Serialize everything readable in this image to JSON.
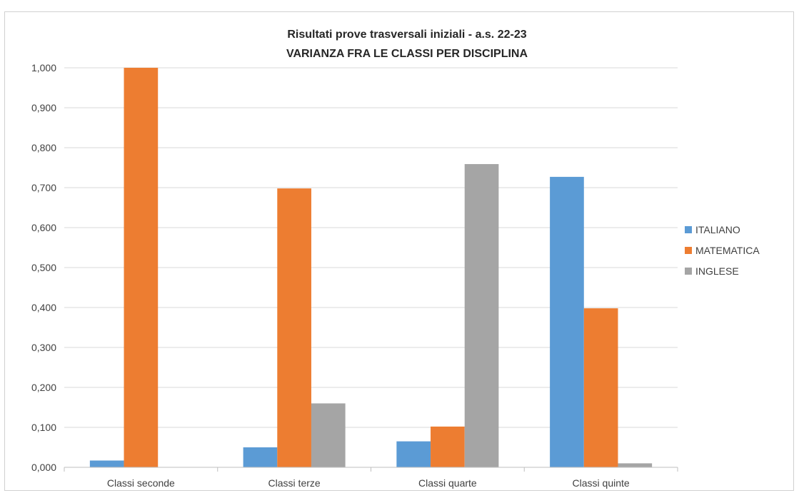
{
  "chart_data": {
    "type": "bar",
    "title": "Risultati prove trasversali iniziali - a.s. 22-23",
    "subtitle": "VARIANZA FRA LE CLASSI PER DISCIPLINA",
    "categories": [
      "Classi seconde",
      "Classi terze",
      "Classi quarte",
      "Classi quinte"
    ],
    "series": [
      {
        "name": "ITALIANO",
        "color": "#5B9BD5",
        "values": [
          0.017,
          0.05,
          0.065,
          0.727
        ]
      },
      {
        "name": "MATEMATICA",
        "color": "#ED7D31",
        "values": [
          1.0,
          0.698,
          0.102,
          0.398
        ]
      },
      {
        "name": "INGLESE",
        "color": "#A5A5A5",
        "values": [
          0.0,
          0.16,
          0.759,
          0.01
        ]
      }
    ],
    "ylim": [
      0,
      1.0
    ],
    "yticks": [
      "0,000",
      "0,100",
      "0,200",
      "0,300",
      "0,400",
      "0,500",
      "0,600",
      "0,700",
      "0,800",
      "0,900",
      "1,000"
    ],
    "grid": true,
    "legend_position": "right"
  }
}
